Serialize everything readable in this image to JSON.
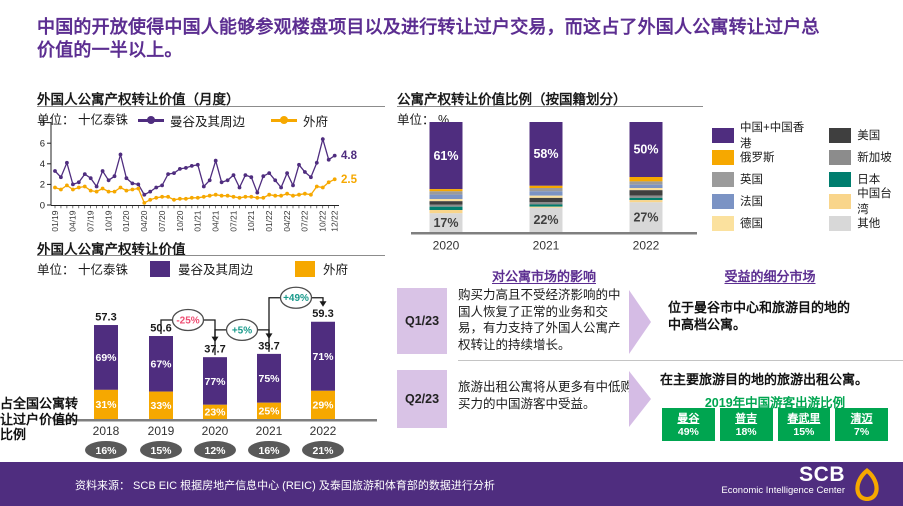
{
  "header": {
    "title": "中国的开放使得中国人能够参观楼盘项目以及进行转让过户交易，而这占了外国人公寓转让过户总价值的一半以上。"
  },
  "colors": {
    "brand_purple": "#4F2D7F",
    "title_purple": "#5C2E91",
    "accent_orange": "#F6A800",
    "green": "#00A550",
    "negative_pink": "#EE4D72",
    "positive_teal": "#17998A",
    "light_purple": "#D9C3E6"
  },
  "chart_data": [
    {
      "id": "monthly_line",
      "type": "line",
      "title": "外国人公寓产权转让价值（月度）",
      "unit_label": "单位： 十亿泰铢",
      "ylim": [
        0,
        8
      ],
      "yticks": [
        0,
        2,
        4,
        6,
        8
      ],
      "x_tick_labels": [
        "01/19",
        "04/19",
        "07/19",
        "10/19",
        "01/20",
        "04/20",
        "07/20",
        "10/20",
        "01/21",
        "04/21",
        "07/21",
        "10/21",
        "01/22",
        "04/22",
        "07/22",
        "10/22",
        "12/22"
      ],
      "series": [
        {
          "name": "曼谷及其周边",
          "color": "#4F2D7F",
          "end_label": "4.8",
          "values": [
            3.3,
            2.7,
            4.1,
            2.0,
            2.2,
            3.0,
            2.6,
            1.8,
            3.3,
            2.4,
            2.8,
            4.9,
            2.6,
            2.1,
            2.0,
            1.0,
            1.3,
            1.7,
            1.9,
            3.0,
            3.1,
            3.5,
            3.6,
            3.8,
            3.9,
            1.8,
            2.4,
            4.3,
            2.2,
            2.4,
            2.9,
            1.7,
            2.9,
            2.7,
            1.2,
            2.8,
            3.1,
            2.4,
            1.7,
            3.1,
            1.9,
            3.9,
            3.2,
            2.7,
            4.1,
            6.4,
            4.4,
            4.8
          ]
        },
        {
          "name": "外府",
          "color": "#F6A800",
          "end_label": "2.5",
          "values": [
            1.7,
            1.5,
            1.9,
            1.5,
            1.7,
            1.8,
            1.4,
            1.3,
            1.6,
            1.3,
            1.3,
            1.7,
            1.4,
            1.5,
            1.6,
            0.2,
            0.5,
            0.7,
            0.8,
            0.8,
            0.5,
            0.6,
            0.6,
            0.7,
            0.7,
            0.8,
            0.9,
            1.0,
            0.9,
            0.9,
            0.8,
            0.7,
            0.8,
            0.8,
            0.7,
            0.7,
            1.0,
            0.9,
            0.9,
            1.1,
            0.9,
            1.0,
            1.1,
            1.0,
            1.8,
            1.7,
            2.2,
            2.5
          ]
        }
      ]
    },
    {
      "id": "annual_stacked",
      "type": "bar",
      "title": "外国人公寓产权转让价值",
      "unit_label": "单位： 十亿泰铢",
      "categories": [
        "2018",
        "2019",
        "2020",
        "2021",
        "2022"
      ],
      "totals": [
        57.3,
        50.6,
        37.7,
        39.7,
        59.3
      ],
      "series": [
        {
          "name": "曼谷及其周边",
          "color": "#4F2D7F",
          "pct": [
            69,
            67,
            77,
            75,
            71
          ]
        },
        {
          "name": "外府",
          "color": "#F6A800",
          "pct": [
            31,
            33,
            23,
            25,
            29
          ]
        }
      ],
      "growth_annotations": [
        {
          "from": "2019",
          "to": "2020",
          "label": "-25%",
          "color": "#EE4D72"
        },
        {
          "from": "2020",
          "to": "2021",
          "label": "+5%",
          "color": "#17998A"
        },
        {
          "from": "2021",
          "to": "2022",
          "label": "+49%",
          "color": "#17998A"
        }
      ],
      "share_caption": "占全国公寓转\n让过户价值的\n比例",
      "national_share": [
        "16%",
        "15%",
        "12%",
        "16%",
        "21%"
      ]
    },
    {
      "id": "nationality_stacked",
      "type": "bar",
      "title": "公寓产权转让价值比例（按国籍划分）",
      "unit_label": "单位： %",
      "categories": [
        "2020",
        "2021",
        "2022"
      ],
      "labeled_series": [
        "中国+中国香港",
        "其他"
      ],
      "series": [
        {
          "name": "中国+中国香港",
          "color": "#4F2D7F",
          "values": [
            61,
            58,
            50
          ]
        },
        {
          "name": "俄罗斯",
          "color": "#F6A800",
          "values": [
            2,
            2,
            4
          ]
        },
        {
          "name": "英国",
          "color": "#9B9B9B",
          "values": [
            3,
            3,
            3
          ]
        },
        {
          "name": "法国",
          "color": "#7B93C4",
          "values": [
            4,
            4,
            3
          ]
        },
        {
          "name": "德国",
          "color": "#FBE19E",
          "values": [
            2,
            2,
            2
          ]
        },
        {
          "name": "美国",
          "color": "#3F3F3F",
          "values": [
            3,
            4,
            5
          ]
        },
        {
          "name": "新加坡",
          "color": "#8C8C8C",
          "values": [
            2,
            2,
            2
          ]
        },
        {
          "name": "日本",
          "color": "#007D6E",
          "values": [
            3,
            2,
            2
          ]
        },
        {
          "name": "中国台湾",
          "color": "#F9D58B",
          "values": [
            3,
            1,
            2
          ]
        },
        {
          "name": "其他",
          "color": "#D8D8D8",
          "values": [
            17,
            22,
            27
          ]
        }
      ]
    }
  ],
  "impact": {
    "col1_header": "对公寓市场的影响",
    "col2_header": "受益的细分市场",
    "rows": [
      {
        "quarter": "Q1/23",
        "impact": "购买力高且不受经济影响的中国人恢复了正常的业务和交易，有力支持了外国人公寓产权转让的持续增长。",
        "benefit": "位于曼谷市中心和旅游目的地的中高档公寓。"
      },
      {
        "quarter": "Q2/23",
        "impact": "旅游出租公寓将从更多有中低购买力的中国游客中受益。",
        "benefit": "在主要旅游目的地的旅游出租公寓。"
      }
    ],
    "tourist_table": {
      "title": "2019年中国游客出游比例",
      "cells": [
        {
          "city": "曼谷",
          "pct": "49%"
        },
        {
          "city": "普吉",
          "pct": "18%"
        },
        {
          "city": "春武里",
          "pct": "15%"
        },
        {
          "city": "清迈",
          "pct": "7%"
        }
      ]
    }
  },
  "footer": {
    "source": "资料来源： SCB EIC 根据房地产信息中心 (REIC) 及泰国旅游和体育部的数据进行分析",
    "logo_name": "SCB",
    "logo_subtitle": "Economic Intelligence Center"
  }
}
